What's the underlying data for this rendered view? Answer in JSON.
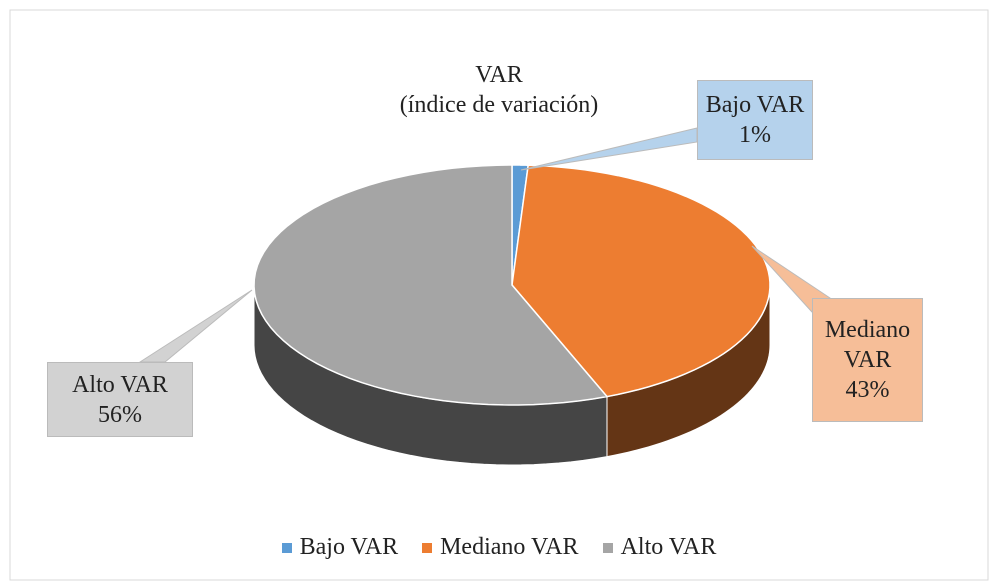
{
  "chart_data": {
    "type": "pie",
    "title": "VAR",
    "subtitle": "(índice de variación)",
    "categories": [
      "Bajo VAR",
      "Mediano VAR",
      "Alto VAR"
    ],
    "values": [
      1,
      43,
      56
    ],
    "value_labels": [
      "1%",
      "43%",
      "56%"
    ],
    "colors": [
      "#5b9bd5",
      "#ed7d31",
      "#a5a5a5"
    ],
    "legend": "bottom"
  }
}
